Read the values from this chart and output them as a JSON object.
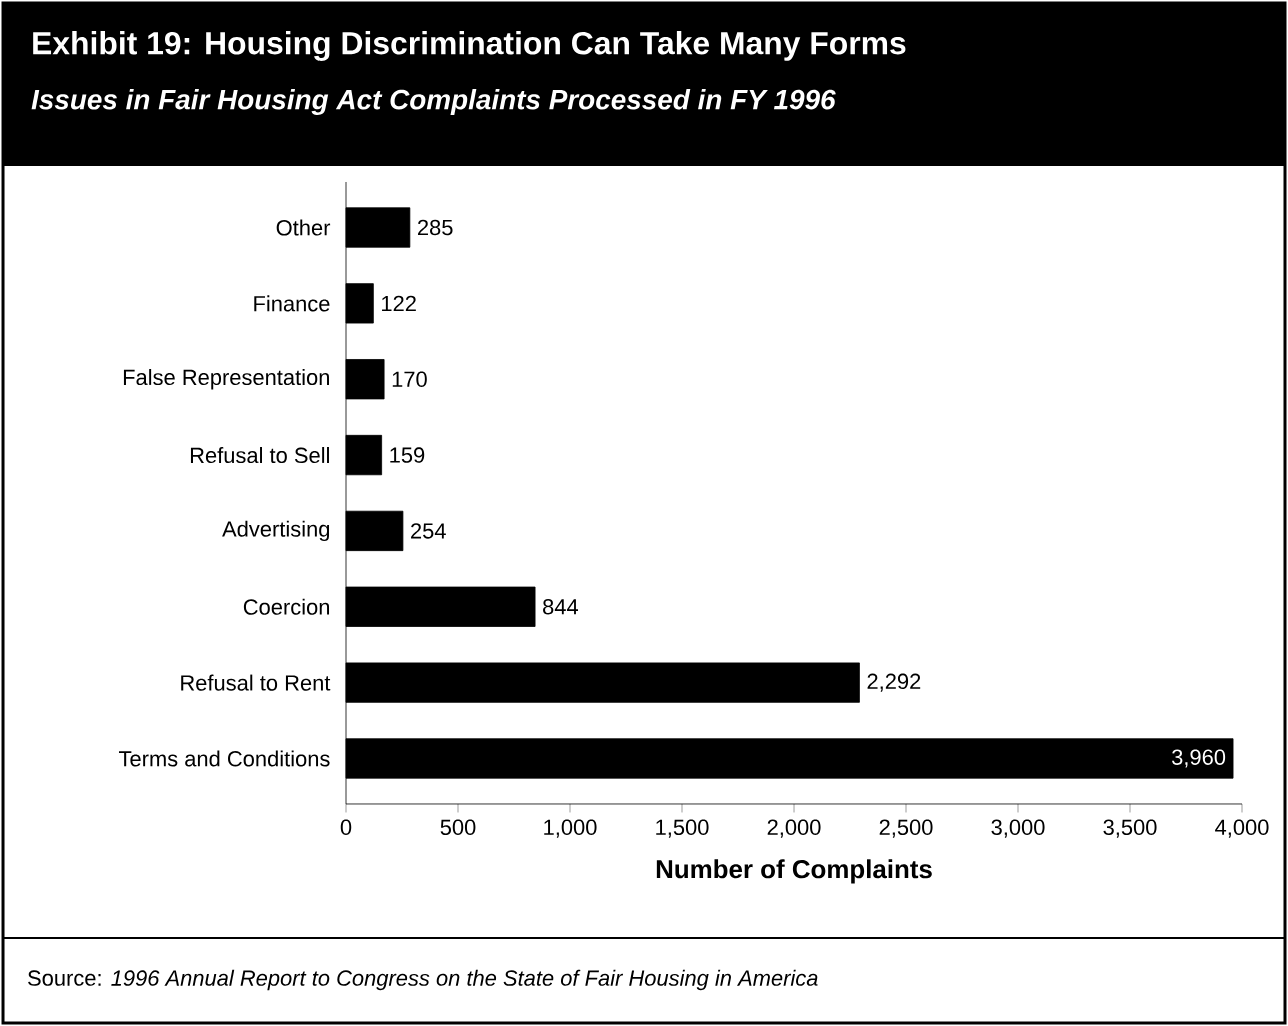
{
  "chart_data": {
    "type": "bar",
    "orientation": "horizontal",
    "title": "Exhibit 19: Housing Discrimination Can Take Many Forms",
    "subtitle": "Issues in Fair Housing Act Complaints Processed in FY 1996",
    "categories": [
      "Other",
      "Finance",
      "False Representation",
      "Refusal to Sell",
      "Advertising",
      "Coercion",
      "Refusal to Rent",
      "Terms and Conditions"
    ],
    "values": [
      285,
      122,
      170,
      159,
      254,
      844,
      2292,
      3960
    ],
    "value_labels": [
      "285",
      "122",
      "170",
      "159",
      "254",
      "844",
      "2,292",
      "3,960"
    ],
    "color": "#000000",
    "xlim": [
      0,
      4000
    ],
    "xticks": [
      0,
      500,
      {
        "value": 1000,
        "label": "1,000"
      },
      {
        "value": 1500,
        "label": "1,500"
      },
      {
        "value": 2000,
        "label": "2,000"
      },
      {
        "value": 2500,
        "label": "2,500"
      },
      {
        "value": 3000,
        "label": "3,000"
      },
      {
        "value": 3500,
        "label": "3,500"
      },
      {
        "value": 4000,
        "label": "4,000"
      }
    ],
    "xlabel": "Number of Complaints",
    "annotations": [
      "Source: *1996 Annual Report to Congress on the State of Fair Housing in America*"
    ]
  }
}
